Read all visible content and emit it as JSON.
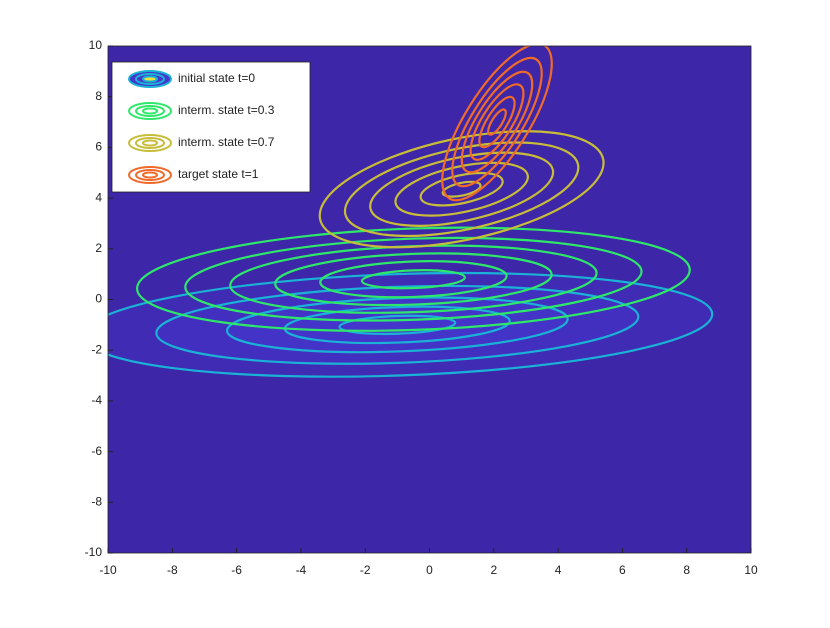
{
  "chart_data": {
    "type": "contour",
    "xlim": [
      -10,
      10
    ],
    "ylim": [
      -10,
      10
    ],
    "xticks": [
      -10,
      -8,
      -6,
      -4,
      -2,
      0,
      2,
      4,
      6,
      8,
      10
    ],
    "yticks": [
      -10,
      -8,
      -6,
      -4,
      -2,
      0,
      2,
      4,
      6,
      8,
      10
    ],
    "background": "#3e26a8",
    "legend": "upper left",
    "series": [
      {
        "name": "initial state t=0",
        "color": "#1ab2d6",
        "fill": "#4536cc",
        "filled": true,
        "center": [
          -1,
          -1
        ],
        "angle": -2,
        "rx": [
          9.8,
          7.5,
          5.3,
          3.5,
          1.8
        ],
        "ry": [
          2.0,
          1.5,
          1.05,
          0.7,
          0.35
        ]
      },
      {
        "name": "interm. state t=0.3",
        "color": "#2ee86a",
        "filled": false,
        "center": [
          -0.5,
          0.8
        ],
        "angle": -2,
        "rx": [
          8.6,
          7.1,
          5.7,
          4.3,
          2.9,
          1.6
        ],
        "ry": [
          2.0,
          1.6,
          1.3,
          1.0,
          0.7,
          0.35
        ]
      },
      {
        "name": "interm. state t=0.7",
        "color": "#c8bd38",
        "filled": false,
        "center": [
          1.0,
          4.35
        ],
        "angle": -12,
        "rx": [
          4.5,
          3.7,
          2.9,
          2.1,
          1.3,
          0.6
        ],
        "ry": [
          2.0,
          1.6,
          1.25,
          0.9,
          0.55,
          0.25
        ]
      },
      {
        "name": "target state t=1",
        "color": "#f06a2a",
        "filled": false,
        "center": [
          2.1,
          7.0
        ],
        "angle": -58,
        "rx": [
          2.8,
          2.3,
          1.8,
          1.35,
          0.9,
          0.45
        ],
        "ry": [
          1.25,
          1.0,
          0.8,
          0.6,
          0.4,
          0.2
        ]
      }
    ]
  }
}
